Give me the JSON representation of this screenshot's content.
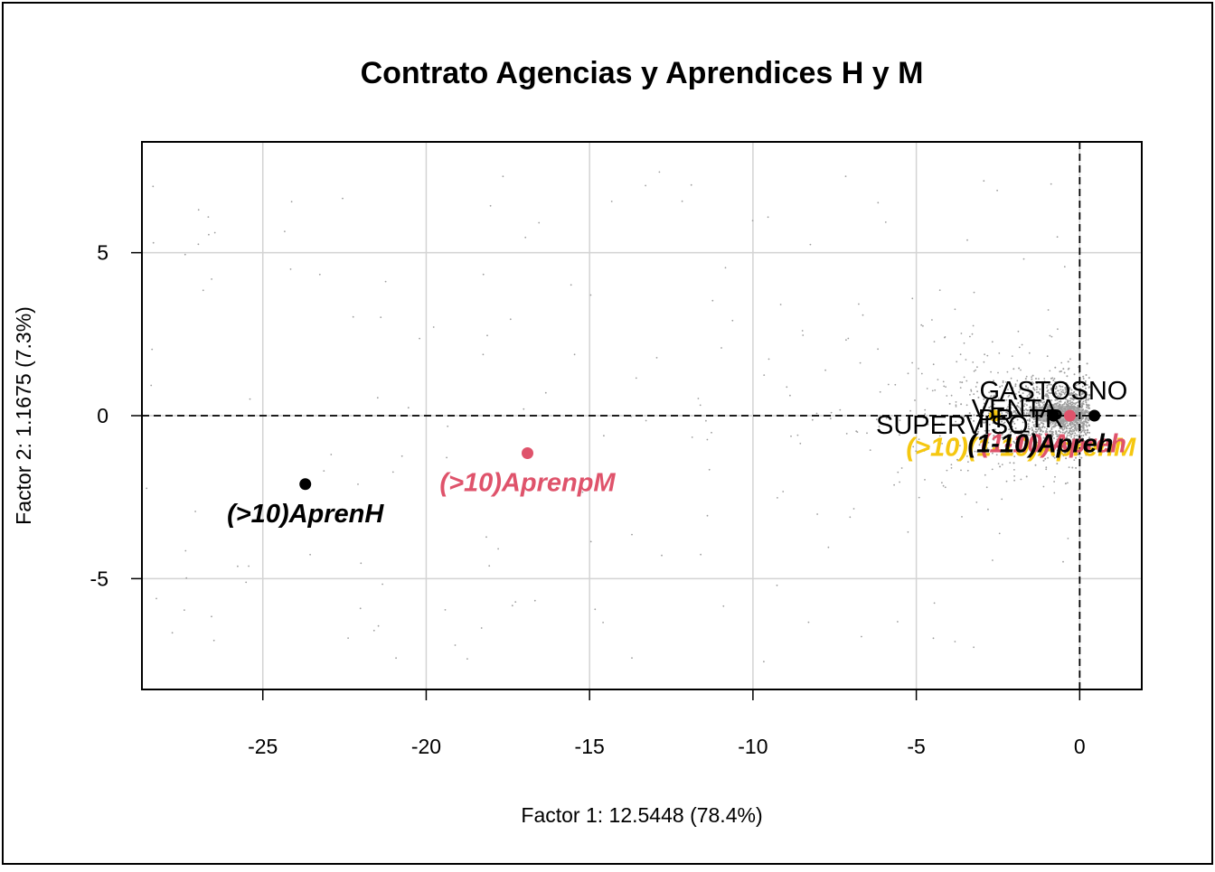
{
  "chart_data": {
    "type": "scatter",
    "title": "Contrato Agencias y Aprendices H y M",
    "xlabel": "Factor 1: 12.5448 (78.4%)",
    "ylabel": "Factor 2: 1.1675 (7.3%)",
    "xlim": [
      -28.7,
      1.9
    ],
    "ylim": [
      -8.4,
      8.4
    ],
    "x_ticks": [
      -25,
      -20,
      -15,
      -10,
      -5,
      0
    ],
    "y_ticks": [
      -5,
      0,
      5
    ],
    "grid": true,
    "reference_lines": {
      "x": 0,
      "y": 0
    },
    "colors": {
      "black": "#000000",
      "red": "#df536b",
      "yellow": "#f5c710",
      "gray": "#9e9e9e"
    },
    "points": [
      {
        "label": "(>10)AprenH",
        "x": -23.7,
        "y": -2.1,
        "color": "#000000",
        "style": "bold-italic"
      },
      {
        "label": "(>10)AprenpM",
        "x": -16.9,
        "y": -1.15,
        "color": "#df536b",
        "style": "bold-italic"
      },
      {
        "label": "",
        "x": -2.6,
        "y": 0.0,
        "color": "#f5c710",
        "style": "point"
      },
      {
        "label": "",
        "x": -0.8,
        "y": 0.0,
        "color": "#000000",
        "style": "point"
      },
      {
        "label": "",
        "x": -0.3,
        "y": 0.0,
        "color": "#df536b",
        "style": "point"
      },
      {
        "label": "",
        "x": 0.45,
        "y": 0.0,
        "color": "#000000",
        "style": "point"
      }
    ],
    "cluster_labels": [
      {
        "text": "GASTOSNO",
        "x": -0.8,
        "y": 0.78,
        "color": "#000000",
        "style": "plain"
      },
      {
        "text": "VENTA",
        "x": -2.0,
        "y": 0.22,
        "color": "#000000",
        "style": "plain"
      },
      {
        "text": "PR_TR",
        "x": -1.8,
        "y": -0.08,
        "color": "#000000",
        "style": "plain"
      },
      {
        "text": "SUPERVISO",
        "x": -3.9,
        "y": -0.28,
        "color": "#000000",
        "style": "plain"
      },
      {
        "text": "(>10)(1-10)AprenM",
        "x": -1.8,
        "y": -0.95,
        "color": "#f5c710",
        "style": "bold-italic"
      },
      {
        "text": "(1-10)Apreh",
        "x": -0.8,
        "y": -0.85,
        "color": "#df536b",
        "style": "bold-italic"
      },
      {
        "text": "(1-10)Apreh",
        "x": -1.2,
        "y": -0.85,
        "color": "#000000",
        "style": "bold-italic"
      }
    ]
  }
}
